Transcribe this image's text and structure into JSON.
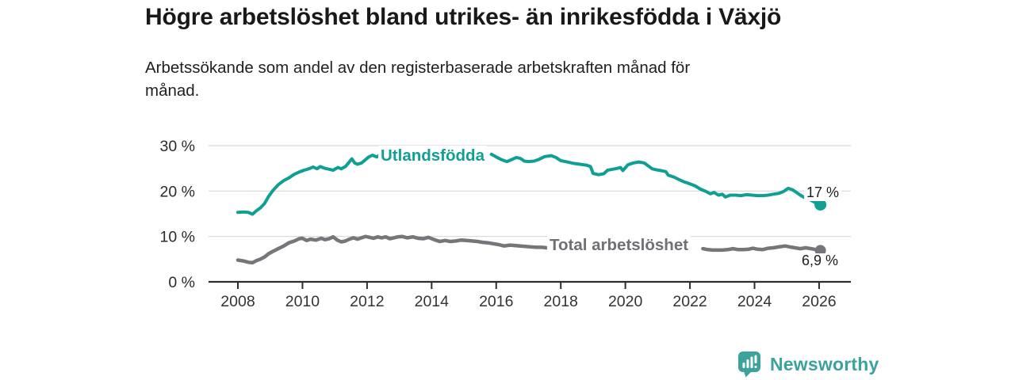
{
  "header": {
    "title": "Högre arbetslöshet bland utrikes- än inrikesfödda i Växjö",
    "subtitle_lines": [
      "Arbetssökande som andel av den registerbaserade arbetskraften månad för",
      "månad."
    ]
  },
  "footer": {
    "brand_name": "Newsworthy",
    "brand_color": "#3da19c",
    "icon": "bar-chart-speech-bubble-icon"
  },
  "colors": {
    "axis": "#2d2d2d",
    "grid": "#d7d7d7",
    "tick_text": "#333333",
    "annotation_text": "#1c1c1c"
  },
  "chart_data": {
    "type": "line",
    "title": "Högre arbetslöshet bland utrikes- än inrikesfödda i Växjö",
    "subtitle": "Arbetssökande som andel av den registerbaserade arbetskraften månad för månad.",
    "xlabel": "",
    "ylabel": "",
    "grid": "horizontal",
    "legend_position": "inline-labels",
    "x_axis": {
      "range": [
        2007.1,
        2027.0
      ],
      "ticks": [
        2008,
        2010,
        2012,
        2014,
        2016,
        2018,
        2020,
        2022,
        2024,
        2026
      ]
    },
    "y_axis": {
      "range": [
        0,
        30
      ],
      "ticks": [
        {
          "value": 0,
          "label": "0 %"
        },
        {
          "value": 10,
          "label": "10 %"
        },
        {
          "value": 20,
          "label": "20 %"
        },
        {
          "value": 30,
          "label": "30 %"
        }
      ]
    },
    "series": [
      {
        "name": "Utlandsfödda",
        "color": "#10a093",
        "line_width": 4,
        "dot_radius": 7.5,
        "end_value": 17,
        "end_label": "17 %",
        "segments": [
          [
            [
              2008.0,
              15.3
            ],
            [
              2008.17,
              15.4
            ],
            [
              2008.33,
              15.3
            ],
            [
              2008.45,
              14.9
            ],
            [
              2008.58,
              15.7
            ],
            [
              2008.7,
              16.3
            ],
            [
              2008.83,
              17.3
            ],
            [
              2008.95,
              18.8
            ],
            [
              2009.08,
              20.1
            ],
            [
              2009.25,
              21.4
            ],
            [
              2009.42,
              22.3
            ],
            [
              2009.58,
              22.9
            ],
            [
              2009.75,
              23.7
            ],
            [
              2009.9,
              24.2
            ],
            [
              2010.05,
              24.6
            ],
            [
              2010.2,
              24.9
            ],
            [
              2010.33,
              25.3
            ],
            [
              2010.45,
              24.9
            ],
            [
              2010.55,
              25.4
            ],
            [
              2010.7,
              25.0
            ],
            [
              2010.83,
              24.8
            ],
            [
              2010.95,
              24.6
            ],
            [
              2011.1,
              25.2
            ],
            [
              2011.2,
              24.9
            ],
            [
              2011.33,
              25.4
            ],
            [
              2011.45,
              26.4
            ],
            [
              2011.53,
              27.1
            ],
            [
              2011.62,
              26.2
            ],
            [
              2011.7,
              25.9
            ],
            [
              2011.83,
              26.2
            ],
            [
              2011.95,
              26.9
            ],
            [
              2012.05,
              27.5
            ],
            [
              2012.17,
              27.9
            ],
            [
              2012.3,
              27.5
            ],
            [
              2012.45,
              28.2
            ]
          ],
          [
            [
              2015.85,
              28.1
            ],
            [
              2016.0,
              27.5
            ],
            [
              2016.17,
              26.9
            ],
            [
              2016.33,
              26.5
            ],
            [
              2016.5,
              27.0
            ],
            [
              2016.62,
              27.4
            ],
            [
              2016.75,
              27.2
            ],
            [
              2016.87,
              26.6
            ],
            [
              2017.0,
              26.5
            ],
            [
              2017.17,
              26.6
            ],
            [
              2017.33,
              27.0
            ],
            [
              2017.5,
              27.6
            ],
            [
              2017.7,
              27.8
            ],
            [
              2017.85,
              27.4
            ],
            [
              2018.0,
              26.7
            ],
            [
              2018.2,
              26.4
            ],
            [
              2018.4,
              26.1
            ],
            [
              2018.6,
              25.9
            ],
            [
              2018.8,
              25.7
            ],
            [
              2018.92,
              25.4
            ],
            [
              2019.0,
              23.9
            ],
            [
              2019.17,
              23.6
            ],
            [
              2019.33,
              23.8
            ],
            [
              2019.45,
              24.6
            ],
            [
              2019.6,
              24.8
            ],
            [
              2019.75,
              25.0
            ],
            [
              2019.85,
              25.2
            ],
            [
              2019.92,
              24.5
            ],
            [
              2020.08,
              25.8
            ],
            [
              2020.25,
              26.2
            ],
            [
              2020.42,
              26.4
            ],
            [
              2020.58,
              26.2
            ],
            [
              2020.7,
              25.6
            ],
            [
              2020.83,
              24.9
            ],
            [
              2020.95,
              24.7
            ],
            [
              2021.1,
              24.5
            ],
            [
              2021.25,
              24.3
            ],
            [
              2021.33,
              23.5
            ],
            [
              2021.5,
              23.1
            ],
            [
              2021.67,
              22.5
            ],
            [
              2021.83,
              22.0
            ],
            [
              2022.0,
              21.6
            ],
            [
              2022.17,
              21.1
            ],
            [
              2022.33,
              20.4
            ],
            [
              2022.5,
              19.9
            ],
            [
              2022.63,
              19.4
            ],
            [
              2022.75,
              19.7
            ],
            [
              2022.88,
              19.1
            ],
            [
              2023.0,
              19.3
            ],
            [
              2023.1,
              18.7
            ],
            [
              2023.25,
              19.1
            ],
            [
              2023.42,
              19.1
            ],
            [
              2023.58,
              19.0
            ],
            [
              2023.75,
              19.2
            ],
            [
              2023.92,
              19.1
            ],
            [
              2024.08,
              19.0
            ],
            [
              2024.25,
              19.0
            ],
            [
              2024.42,
              19.1
            ],
            [
              2024.58,
              19.3
            ],
            [
              2024.75,
              19.5
            ],
            [
              2024.9,
              19.9
            ],
            [
              2025.04,
              20.6
            ],
            [
              2025.17,
              20.3
            ],
            [
              2025.3,
              19.7
            ],
            [
              2025.42,
              19.1
            ],
            [
              2025.54,
              18.6
            ],
            [
              2025.67,
              18.3
            ],
            [
              2025.79,
              17.8
            ],
            [
              2025.9,
              17.4
            ],
            [
              2026.04,
              17.0
            ]
          ]
        ]
      },
      {
        "name": "Total arbetslöshet",
        "color": "#76757a",
        "line_width": 4.5,
        "dot_radius": 7,
        "end_value": 6.9,
        "end_label": "6,9 %",
        "segments": [
          [
            [
              2008.0,
              4.8
            ],
            [
              2008.17,
              4.6
            ],
            [
              2008.33,
              4.3
            ],
            [
              2008.45,
              4.2
            ],
            [
              2008.58,
              4.7
            ],
            [
              2008.7,
              5.0
            ],
            [
              2008.83,
              5.5
            ],
            [
              2008.95,
              6.2
            ],
            [
              2009.08,
              6.7
            ],
            [
              2009.25,
              7.3
            ],
            [
              2009.42,
              7.9
            ],
            [
              2009.58,
              8.6
            ],
            [
              2009.75,
              9.0
            ],
            [
              2009.9,
              9.5
            ],
            [
              2010.0,
              9.6
            ],
            [
              2010.13,
              9.1
            ],
            [
              2010.25,
              9.4
            ],
            [
              2010.42,
              9.2
            ],
            [
              2010.58,
              9.6
            ],
            [
              2010.7,
              9.3
            ],
            [
              2010.83,
              9.5
            ],
            [
              2010.95,
              9.9
            ],
            [
              2011.08,
              9.2
            ],
            [
              2011.2,
              8.8
            ],
            [
              2011.33,
              9.0
            ],
            [
              2011.45,
              9.4
            ],
            [
              2011.58,
              9.7
            ],
            [
              2011.7,
              9.4
            ],
            [
              2011.83,
              9.7
            ],
            [
              2011.95,
              10.0
            ],
            [
              2012.08,
              9.8
            ],
            [
              2012.2,
              9.6
            ],
            [
              2012.33,
              9.9
            ],
            [
              2012.45,
              9.7
            ],
            [
              2012.58,
              9.9
            ],
            [
              2012.7,
              9.5
            ],
            [
              2012.83,
              9.7
            ],
            [
              2012.95,
              9.9
            ],
            [
              2013.08,
              10.0
            ],
            [
              2013.25,
              9.7
            ],
            [
              2013.42,
              9.9
            ],
            [
              2013.58,
              9.6
            ],
            [
              2013.75,
              9.5
            ],
            [
              2013.9,
              9.8
            ],
            [
              2014.08,
              9.3
            ],
            [
              2014.25,
              8.9
            ],
            [
              2014.42,
              9.1
            ],
            [
              2014.58,
              8.9
            ],
            [
              2014.75,
              9.0
            ],
            [
              2014.9,
              9.2
            ],
            [
              2015.08,
              9.1
            ],
            [
              2015.25,
              9.0
            ],
            [
              2015.42,
              8.9
            ],
            [
              2015.58,
              8.7
            ],
            [
              2015.75,
              8.6
            ],
            [
              2015.9,
              8.4
            ],
            [
              2016.08,
              8.2
            ],
            [
              2016.25,
              7.9
            ],
            [
              2016.42,
              8.1
            ],
            [
              2016.58,
              8.0
            ],
            [
              2016.75,
              7.9
            ],
            [
              2016.9,
              7.8
            ],
            [
              2017.08,
              7.7
            ],
            [
              2017.25,
              7.6
            ],
            [
              2017.42,
              7.6
            ],
            [
              2017.55,
              7.5
            ]
          ],
          [
            [
              2022.4,
              7.3
            ],
            [
              2022.55,
              7.1
            ],
            [
              2022.7,
              7.0
            ],
            [
              2022.85,
              7.0
            ],
            [
              2023.0,
              7.0
            ],
            [
              2023.17,
              7.1
            ],
            [
              2023.33,
              7.3
            ],
            [
              2023.5,
              7.1
            ],
            [
              2023.67,
              7.1
            ],
            [
              2023.83,
              7.2
            ],
            [
              2023.95,
              7.4
            ],
            [
              2024.08,
              7.2
            ],
            [
              2024.25,
              7.1
            ],
            [
              2024.42,
              7.4
            ],
            [
              2024.58,
              7.5
            ],
            [
              2024.75,
              7.7
            ],
            [
              2024.95,
              7.9
            ],
            [
              2025.1,
              7.7
            ],
            [
              2025.25,
              7.5
            ],
            [
              2025.42,
              7.3
            ],
            [
              2025.58,
              7.5
            ],
            [
              2025.75,
              7.3
            ],
            [
              2025.9,
              7.1
            ],
            [
              2026.04,
              6.9
            ]
          ]
        ]
      }
    ]
  }
}
